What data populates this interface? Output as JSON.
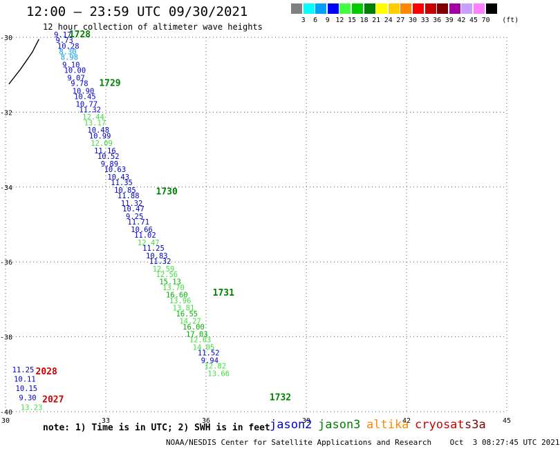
{
  "title": "12:00 – 23:59 UTC 09/30/2021",
  "subtitle": "12 hour collection of altimeter wave heights",
  "colorbar": {
    "unit": "(ft)",
    "colors": [
      "#808080",
      "#00ffff",
      "#00a0ff",
      "#0000ff",
      "#40ff40",
      "#00cc00",
      "#008000",
      "#ffff00",
      "#ffcc00",
      "#ff8800",
      "#ff0000",
      "#c80000",
      "#800000",
      "#a000a0",
      "#c8a0ff",
      "#ff80ff",
      "#000000"
    ],
    "labels": [
      "3",
      "6",
      "9",
      "12",
      "15",
      "18",
      "21",
      "24",
      "27",
      "30",
      "33",
      "36",
      "39",
      "42",
      "45",
      "70"
    ]
  },
  "map": {
    "lon_range": [
      30,
      45
    ],
    "lat_range": [
      -40,
      -30
    ],
    "x_ticks": [
      "30",
      "33",
      "36",
      "39",
      "42",
      "45"
    ],
    "y_ticks": [
      "-30",
      "-32",
      "-34",
      "-36",
      "-38",
      "-40"
    ],
    "grid": "dotted"
  },
  "colors": {
    "jason2": "#0000cc",
    "jason3": "#008000",
    "altika": "#ff8800",
    "cryosat": "#c80000",
    "s3a": "#800000",
    "swh_blue": "#0000cc",
    "swh_cyan": "#00a0e0",
    "swh_lightgreen": "#40e040",
    "swh_green": "#00b000"
  },
  "passes": [
    {
      "label": "1728",
      "satellite": "jason3",
      "lon": 31.9,
      "lat": -30.0
    },
    {
      "label": "1729",
      "satellite": "jason3",
      "lon": 32.8,
      "lat": -31.3
    },
    {
      "label": "1730",
      "satellite": "jason3",
      "lon": 34.5,
      "lat": -34.2
    },
    {
      "label": "1731",
      "satellite": "jason3",
      "lon": 36.2,
      "lat": -36.9
    },
    {
      "label": "1732",
      "satellite": "jason3",
      "lon": 37.9,
      "lat": -39.7
    },
    {
      "label": "2028",
      "satellite": "cryosat",
      "lon": 30.9,
      "lat": -39.0
    },
    {
      "label": "2027",
      "satellite": "cryosat",
      "lon": 31.1,
      "lat": -39.75
    }
  ],
  "observations": [
    {
      "swh": "9.17",
      "lon": 31.45,
      "lat": -30.0,
      "color": "swh_blue"
    },
    {
      "swh": "9.73",
      "lon": 31.5,
      "lat": -30.15,
      "color": "swh_blue"
    },
    {
      "swh": "10.28",
      "lon": 31.55,
      "lat": -30.3,
      "color": "swh_blue"
    },
    {
      "swh": "8.30",
      "lon": 31.6,
      "lat": -30.45,
      "color": "swh_cyan"
    },
    {
      "swh": "8.98",
      "lon": 31.65,
      "lat": -30.6,
      "color": "swh_cyan"
    },
    {
      "swh": "9.10",
      "lon": 31.7,
      "lat": -30.8,
      "color": "swh_blue"
    },
    {
      "swh": "10.00",
      "lon": 31.75,
      "lat": -30.95,
      "color": "swh_blue"
    },
    {
      "swh": "9.07",
      "lon": 31.85,
      "lat": -31.15,
      "color": "swh_blue"
    },
    {
      "swh": "9.78",
      "lon": 31.95,
      "lat": -31.3,
      "color": "swh_blue"
    },
    {
      "swh": "10.90",
      "lon": 32.0,
      "lat": -31.5,
      "color": "swh_blue"
    },
    {
      "swh": "10.45",
      "lon": 32.05,
      "lat": -31.65,
      "color": "swh_blue"
    },
    {
      "swh": "10.77",
      "lon": 32.1,
      "lat": -31.85,
      "color": "swh_blue"
    },
    {
      "swh": "11.32",
      "lon": 32.2,
      "lat": -32.0,
      "color": "swh_blue"
    },
    {
      "swh": "12.44",
      "lon": 32.3,
      "lat": -32.2,
      "color": "swh_lightgreen"
    },
    {
      "swh": "13.17",
      "lon": 32.35,
      "lat": -32.35,
      "color": "swh_lightgreen"
    },
    {
      "swh": "10.48",
      "lon": 32.45,
      "lat": -32.55,
      "color": "swh_blue"
    },
    {
      "swh": "10.99",
      "lon": 32.5,
      "lat": -32.7,
      "color": "swh_blue"
    },
    {
      "swh": "12.09",
      "lon": 32.55,
      "lat": -32.9,
      "color": "swh_lightgreen"
    },
    {
      "swh": "11.16",
      "lon": 32.65,
      "lat": -33.1,
      "color": "swh_blue"
    },
    {
      "swh": "10.52",
      "lon": 32.75,
      "lat": -33.25,
      "color": "swh_blue"
    },
    {
      "swh": "9.89",
      "lon": 32.85,
      "lat": -33.45,
      "color": "swh_blue"
    },
    {
      "swh": "10.63",
      "lon": 32.95,
      "lat": -33.6,
      "color": "swh_blue"
    },
    {
      "swh": "10.43",
      "lon": 33.05,
      "lat": -33.8,
      "color": "swh_blue"
    },
    {
      "swh": "11.35",
      "lon": 33.15,
      "lat": -33.95,
      "color": "swh_blue"
    },
    {
      "swh": "10.85",
      "lon": 33.25,
      "lat": -34.15,
      "color": "swh_blue"
    },
    {
      "swh": "11.88",
      "lon": 33.35,
      "lat": -34.3,
      "color": "swh_blue"
    },
    {
      "swh": "11.32",
      "lon": 33.45,
      "lat": -34.5,
      "color": "swh_blue"
    },
    {
      "swh": "10.47",
      "lon": 33.5,
      "lat": -34.65,
      "color": "swh_blue"
    },
    {
      "swh": "9.25",
      "lon": 33.6,
      "lat": -34.85,
      "color": "swh_blue"
    },
    {
      "swh": "11.71",
      "lon": 33.65,
      "lat": -35.0,
      "color": "swh_blue"
    },
    {
      "swh": "10.66",
      "lon": 33.75,
      "lat": -35.2,
      "color": "swh_blue"
    },
    {
      "swh": "11.02",
      "lon": 33.85,
      "lat": -35.35,
      "color": "swh_blue"
    },
    {
      "swh": "12.47",
      "lon": 33.95,
      "lat": -35.55,
      "color": "swh_lightgreen"
    },
    {
      "swh": "11.25",
      "lon": 34.1,
      "lat": -35.7,
      "color": "swh_blue"
    },
    {
      "swh": "10.83",
      "lon": 34.2,
      "lat": -35.9,
      "color": "swh_blue"
    },
    {
      "swh": "11.32",
      "lon": 34.3,
      "lat": -36.05,
      "color": "swh_blue"
    },
    {
      "swh": "12.59",
      "lon": 34.4,
      "lat": -36.25,
      "color": "swh_lightgreen"
    },
    {
      "swh": "12.56",
      "lon": 34.5,
      "lat": -36.4,
      "color": "swh_lightgreen"
    },
    {
      "swh": "15.13",
      "lon": 34.6,
      "lat": -36.6,
      "color": "swh_green"
    },
    {
      "swh": "13.70",
      "lon": 34.7,
      "lat": -36.75,
      "color": "swh_lightgreen"
    },
    {
      "swh": "16.60",
      "lon": 34.8,
      "lat": -36.95,
      "color": "swh_green"
    },
    {
      "swh": "13.96",
      "lon": 34.9,
      "lat": -37.1,
      "color": "swh_lightgreen"
    },
    {
      "swh": "13.81",
      "lon": 35.0,
      "lat": -37.3,
      "color": "swh_lightgreen"
    },
    {
      "swh": "16.55",
      "lon": 35.1,
      "lat": -37.45,
      "color": "swh_green"
    },
    {
      "swh": "14.27",
      "lon": 35.2,
      "lat": -37.65,
      "color": "swh_lightgreen"
    },
    {
      "swh": "16.00",
      "lon": 35.3,
      "lat": -37.8,
      "color": "swh_green"
    },
    {
      "swh": "17.03",
      "lon": 35.4,
      "lat": -38.0,
      "color": "swh_green"
    },
    {
      "swh": "12.63",
      "lon": 35.5,
      "lat": -38.15,
      "color": "swh_lightgreen"
    },
    {
      "swh": "14.05",
      "lon": 35.6,
      "lat": -38.35,
      "color": "swh_lightgreen"
    },
    {
      "swh": "11.52",
      "lon": 35.75,
      "lat": -38.5,
      "color": "swh_blue"
    },
    {
      "swh": "9.94",
      "lon": 35.85,
      "lat": -38.7,
      "color": "swh_blue"
    },
    {
      "swh": "12.82",
      "lon": 35.95,
      "lat": -38.85,
      "color": "swh_lightgreen"
    },
    {
      "swh": "13.66",
      "lon": 36.05,
      "lat": -39.05,
      "color": "swh_lightgreen"
    },
    {
      "swh": "11.25",
      "lon": 30.2,
      "lat": -38.95,
      "color": "swh_blue"
    },
    {
      "swh": "10.11",
      "lon": 30.25,
      "lat": -39.2,
      "color": "swh_blue"
    },
    {
      "swh": "10.15",
      "lon": 30.3,
      "lat": -39.45,
      "color": "swh_blue"
    },
    {
      "swh": "9.30",
      "lon": 30.4,
      "lat": -39.7,
      "color": "swh_blue"
    },
    {
      "swh": "13.23",
      "lon": 30.45,
      "lat": -39.95,
      "color": "swh_lightgreen"
    }
  ],
  "coastline": [
    [
      30.1,
      -31.25
    ],
    [
      30.45,
      -30.85
    ],
    [
      30.8,
      -30.4
    ],
    [
      31.0,
      -30.05
    ]
  ],
  "note": "note: 1) Time is in UTC; 2) SWH is in feet",
  "legend": [
    {
      "name": "jason2",
      "color": "#0000cc"
    },
    {
      "name": "jason3",
      "color": "#008000"
    },
    {
      "name": "altika",
      "color": "#ff8800"
    },
    {
      "name": "cryosat",
      "color": "#c80000"
    },
    {
      "name": "s3a",
      "color": "#800000"
    }
  ],
  "credit": "NOAA/NESDIS Center for Satellite Applications and Research    Oct  3 08:27:45 UTC 2021"
}
